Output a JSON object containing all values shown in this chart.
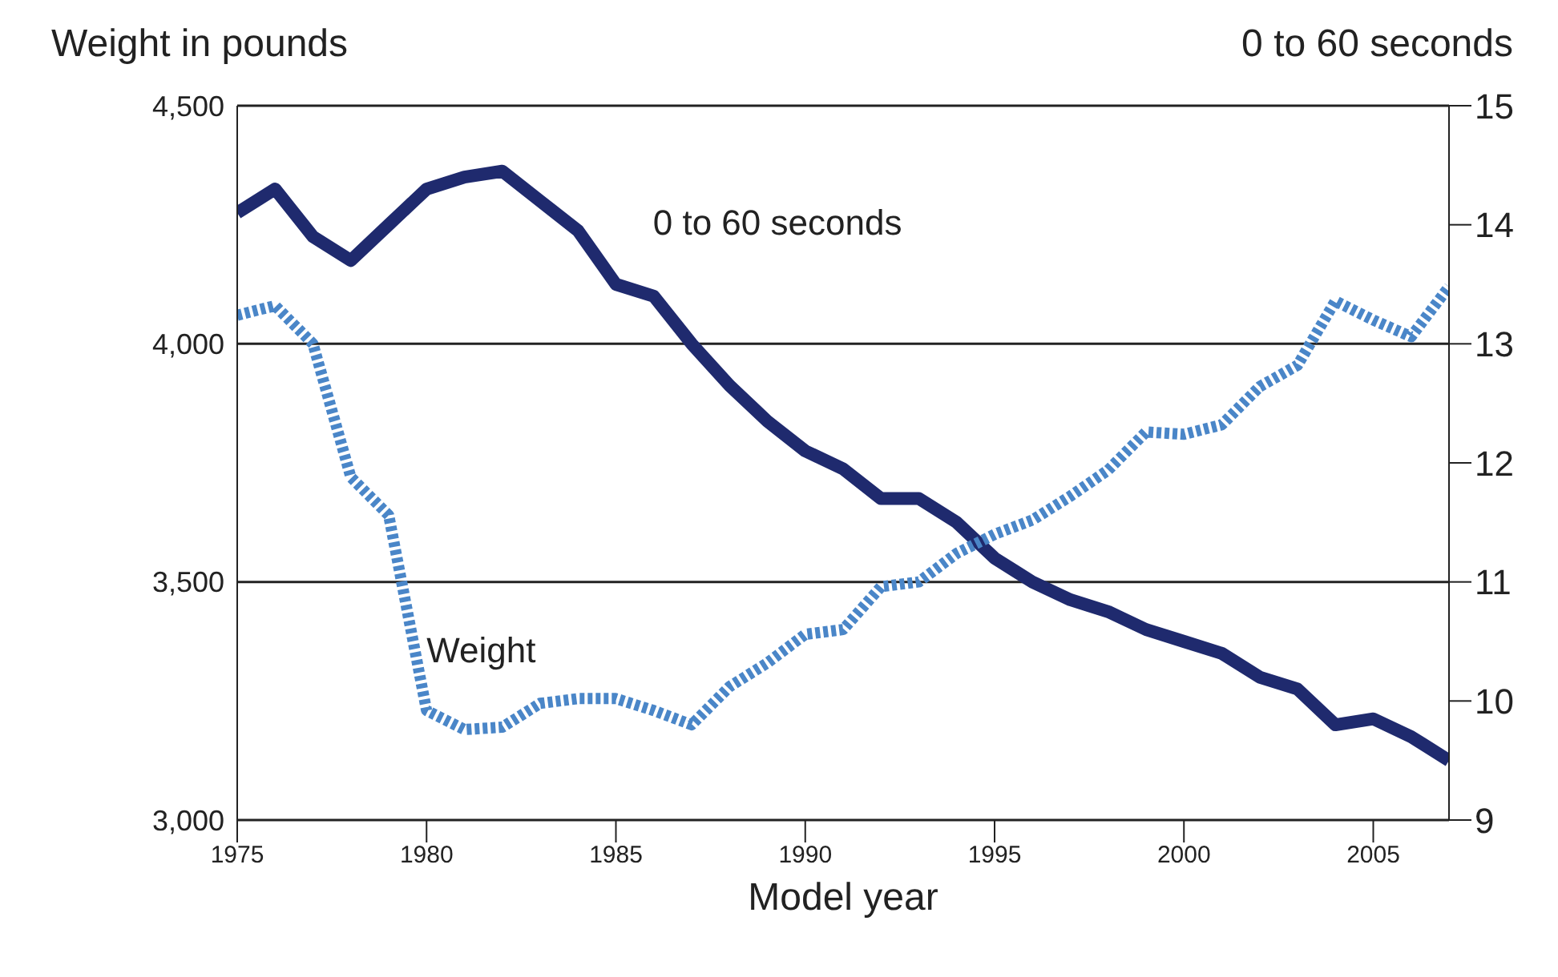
{
  "chart_data": {
    "type": "line",
    "xlabel": "Model year",
    "ylabel": "Weight in pounds",
    "y2label": "0 to 60 seconds",
    "x": [
      1975,
      1976,
      1977,
      1978,
      1979,
      1980,
      1981,
      1982,
      1983,
      1984,
      1985,
      1986,
      1987,
      1988,
      1989,
      1990,
      1991,
      1992,
      1993,
      1994,
      1995,
      1996,
      1997,
      1998,
      1999,
      2000,
      2001,
      2002,
      2003,
      2004,
      2005,
      2006,
      2007
    ],
    "series": [
      {
        "name": "0 to 60 seconds",
        "color": "#1f2a6e",
        "axis": "y2",
        "line_style": "solid",
        "values": [
          14.1,
          14.3,
          13.9,
          13.7,
          14.0,
          14.3,
          14.4,
          14.45,
          14.2,
          13.95,
          13.5,
          13.4,
          13.0,
          12.65,
          12.35,
          12.1,
          11.95,
          11.7,
          11.7,
          11.5,
          11.2,
          11.0,
          10.85,
          10.75,
          10.6,
          10.5,
          10.4,
          10.2,
          10.1,
          9.8,
          9.85,
          9.7,
          9.5
        ]
      },
      {
        "name": "Weight",
        "color": "#4a86c8",
        "line_style": "dotted",
        "values": [
          4060,
          4080,
          4000,
          3720,
          3640,
          3230,
          3190,
          3195,
          3245,
          3255,
          3255,
          3230,
          3200,
          3280,
          3330,
          3390,
          3400,
          3490,
          3500,
          3560,
          3600,
          3630,
          3680,
          3735,
          3815,
          3810,
          3830,
          3910,
          3955,
          4090,
          4050,
          4015,
          4120
        ]
      }
    ],
    "xlim": [
      1975,
      2007
    ],
    "xticks": [
      1975,
      1980,
      1985,
      1990,
      1995,
      2000,
      2005
    ],
    "ylim": [
      3000,
      4500
    ],
    "yticks": [
      {
        "value": 3000,
        "label": "3,000"
      },
      {
        "value": 3500,
        "label": "3,500"
      },
      {
        "value": 4000,
        "label": "4,000"
      },
      {
        "value": 4500,
        "label": "4,500"
      }
    ],
    "y2lim": [
      9,
      15
    ],
    "y2ticks": [
      9,
      10,
      11,
      12,
      13,
      14,
      15
    ],
    "grid": "y",
    "legend": false,
    "marker": "none"
  }
}
